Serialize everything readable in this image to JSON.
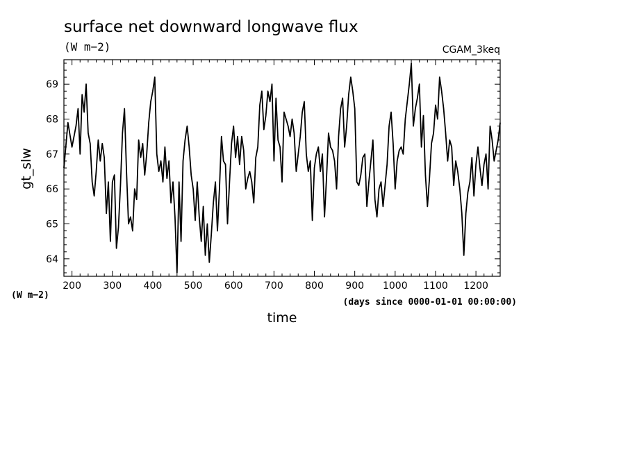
{
  "chart_data": {
    "type": "line",
    "title": "surface net downward longwave flux",
    "units": "(W m−2)",
    "run_label": "CGAM_3keq",
    "xlabel": "time",
    "x_units": "(days since 0000-01-01 00:00:00)",
    "ylabel": "gt_slw",
    "y_units": "(W m−2)",
    "xlim": [
      180,
      1260
    ],
    "ylim": [
      63.5,
      69.7
    ],
    "xticks": [
      200,
      300,
      400,
      500,
      600,
      700,
      800,
      900,
      1000,
      1100,
      1200
    ],
    "yticks": [
      64,
      65,
      66,
      67,
      68,
      69
    ],
    "grid": false,
    "line_color": "#000000",
    "series": [
      {
        "x": [
          180,
          190,
          200,
          210,
          215,
          220,
          225,
          230,
          235,
          240,
          245,
          250,
          255,
          260,
          265,
          270,
          275,
          280,
          285,
          290,
          295,
          300,
          305,
          310,
          315,
          320,
          325,
          330,
          335,
          340,
          345,
          350,
          355,
          360,
          365,
          370,
          375,
          380,
          385,
          390,
          395,
          400,
          405,
          410,
          415,
          420,
          425,
          430,
          435,
          440,
          445,
          450,
          455,
          460,
          465,
          470,
          475,
          480,
          485,
          490,
          495,
          500,
          505,
          510,
          515,
          520,
          525,
          530,
          535,
          540,
          545,
          550,
          555,
          560,
          565,
          570,
          575,
          580,
          585,
          590,
          595,
          600,
          605,
          610,
          615,
          620,
          625,
          630,
          635,
          640,
          645,
          650,
          655,
          660,
          665,
          670,
          675,
          680,
          685,
          690,
          695,
          700,
          705,
          710,
          715,
          720,
          725,
          730,
          735,
          740,
          745,
          750,
          755,
          760,
          765,
          770,
          775,
          780,
          785,
          790,
          795,
          800,
          805,
          810,
          815,
          820,
          825,
          830,
          835,
          840,
          845,
          850,
          855,
          860,
          865,
          870,
          875,
          880,
          885,
          890,
          895,
          900,
          905,
          910,
          915,
          920,
          925,
          930,
          935,
          940,
          945,
          950,
          955,
          960,
          965,
          970,
          975,
          980,
          985,
          990,
          995,
          1000,
          1005,
          1010,
          1015,
          1020,
          1025,
          1030,
          1035,
          1040,
          1045,
          1050,
          1055,
          1060,
          1065,
          1070,
          1075,
          1080,
          1085,
          1090,
          1095,
          1100,
          1105,
          1110,
          1115,
          1120,
          1125,
          1130,
          1135,
          1140,
          1145,
          1150,
          1155,
          1160,
          1165,
          1170,
          1175,
          1180,
          1185,
          1190,
          1195,
          1200,
          1205,
          1210,
          1215,
          1220,
          1225,
          1230,
          1235,
          1240,
          1245,
          1250,
          1255,
          1260
        ],
        "y": [
          66.6,
          67.9,
          67.2,
          67.8,
          68.3,
          67.0,
          68.7,
          68.2,
          69.0,
          67.6,
          67.3,
          66.2,
          65.8,
          66.5,
          67.4,
          66.8,
          67.3,
          66.9,
          65.3,
          66.2,
          64.5,
          66.2,
          66.4,
          64.3,
          64.9,
          66.1,
          67.6,
          68.3,
          66.5,
          65.0,
          65.2,
          64.8,
          66.0,
          65.7,
          67.4,
          66.9,
          67.3,
          66.4,
          67.0,
          67.9,
          68.5,
          68.8,
          69.2,
          67.0,
          66.5,
          66.8,
          66.2,
          67.2,
          66.3,
          66.8,
          65.6,
          66.2,
          65.2,
          63.6,
          66.2,
          64.5,
          66.8,
          67.4,
          67.8,
          67.2,
          66.4,
          66.0,
          65.1,
          66.2,
          65.2,
          64.5,
          65.5,
          64.1,
          65.0,
          63.9,
          64.7,
          65.6,
          66.2,
          64.8,
          66.0,
          67.5,
          66.8,
          66.7,
          65.0,
          66.2,
          67.3,
          67.8,
          66.9,
          67.5,
          66.7,
          67.5,
          67.1,
          66.0,
          66.3,
          66.5,
          66.2,
          65.6,
          66.9,
          67.2,
          68.4,
          68.8,
          67.7,
          68.1,
          68.8,
          68.5,
          69.0,
          66.8,
          68.6,
          67.4,
          67.2,
          66.2,
          68.2,
          68.0,
          67.8,
          67.5,
          68.0,
          67.6,
          66.5,
          67.0,
          67.5,
          68.2,
          68.5,
          67.0,
          66.5,
          66.8,
          65.1,
          66.6,
          67.0,
          67.2,
          66.5,
          67.0,
          65.2,
          66.3,
          67.6,
          67.2,
          67.1,
          66.8,
          66.0,
          67.5,
          68.3,
          68.6,
          67.2,
          67.8,
          68.7,
          69.2,
          68.8,
          68.3,
          66.2,
          66.1,
          66.4,
          66.9,
          67.0,
          65.5,
          66.2,
          66.8,
          67.4,
          65.7,
          65.2,
          66.0,
          66.2,
          65.5,
          66.1,
          66.7,
          67.8,
          68.2,
          67.3,
          66.0,
          66.8,
          67.1,
          67.2,
          67.0,
          68.0,
          68.5,
          69.0,
          69.6,
          67.8,
          68.3,
          68.6,
          69.0,
          67.2,
          68.1,
          66.4,
          65.5,
          66.3,
          67.3,
          67.6,
          68.4,
          68.0,
          69.2,
          68.8,
          68.3,
          67.6,
          66.8,
          67.4,
          67.2,
          66.1,
          66.8,
          66.5,
          66.0,
          65.3,
          64.1,
          65.3,
          65.9,
          66.2,
          66.9,
          65.8,
          66.7,
          67.2,
          66.6,
          66.1,
          66.7,
          67.0,
          66.0,
          67.8,
          67.4,
          66.8,
          67.1,
          67.4,
          67.9
        ]
      }
    ]
  }
}
